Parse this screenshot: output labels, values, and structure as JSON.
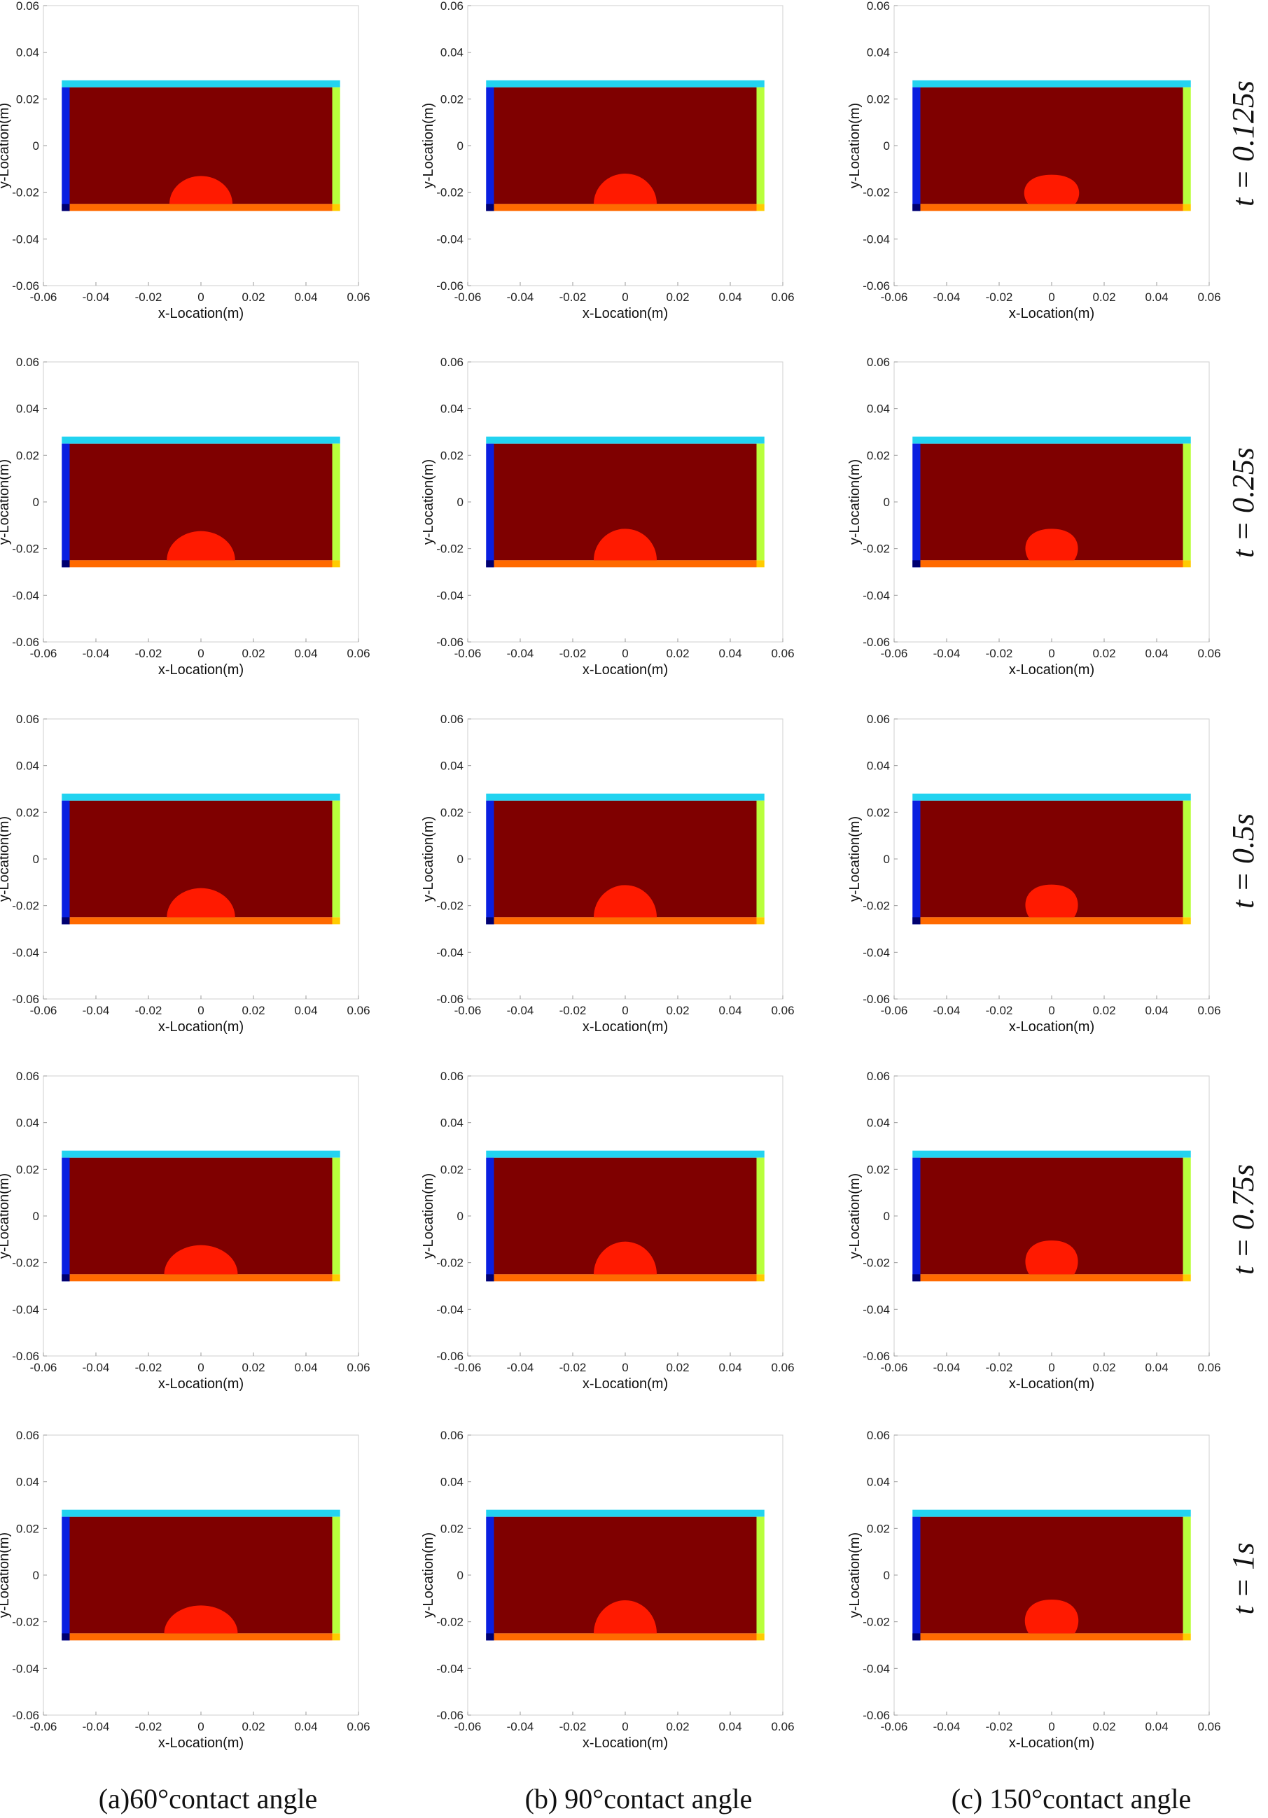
{
  "figure": {
    "column_captions": [
      "(a)60°contact angle",
      "(b) 90°contact angle",
      "(c) 150°contact angle"
    ],
    "row_labels": [
      "t = 0.125s",
      "t = 0.25s",
      "t = 0.5s",
      "t = 0.75s",
      "t = 1s"
    ]
  },
  "colors": {
    "fluid": "#7f0000",
    "droplet": "#ff1a00",
    "top_wall": "#22d3f0",
    "left_wall": "#0a1fe0",
    "right_wall": "#b8ff3c",
    "bottom_wall": "#ff6a00",
    "corner_bottom_left": "#000070",
    "corner_bottom_right": "#ffcc00"
  },
  "chart_data": {
    "type": "scatter",
    "xlabel": "x-Location(m)",
    "ylabel": "y-Location(m)",
    "xlim": [
      -0.06,
      0.06
    ],
    "ylim": [
      -0.06,
      0.06
    ],
    "xticks": [
      "-0.06",
      "-0.04",
      "-0.02",
      "0",
      "0.02",
      "0.04",
      "0.06"
    ],
    "yticks": [
      "0.06",
      "0.04",
      "0.02",
      "0",
      "-0.02",
      "-0.04",
      "-0.06"
    ],
    "domain": {
      "fluid_x": [
        -0.05,
        0.05
      ],
      "fluid_y": [
        -0.025,
        0.025
      ],
      "wall_thickness": 0.003
    },
    "droplet_center_x": 0.0,
    "droplet_base_y": -0.025,
    "droplet_height": {
      "60": [
        0.012,
        0.0125,
        0.0125,
        0.0125,
        0.012
      ],
      "90": [
        0.013,
        0.0135,
        0.0138,
        0.014,
        0.0142
      ],
      "150": [
        0.0125,
        0.0135,
        0.014,
        0.0145,
        0.0145
      ]
    },
    "droplet_halfwidth": {
      "60": [
        0.012,
        0.013,
        0.013,
        0.014,
        0.014
      ],
      "90": [
        0.012,
        0.012,
        0.012,
        0.012,
        0.012
      ],
      "150": [
        0.0115,
        0.011,
        0.011,
        0.011,
        0.0112
      ]
    },
    "columns": [
      "60°",
      "90°",
      "150°"
    ],
    "times": [
      "0.125s",
      "0.25s",
      "0.5s",
      "0.75s",
      "1s"
    ]
  }
}
